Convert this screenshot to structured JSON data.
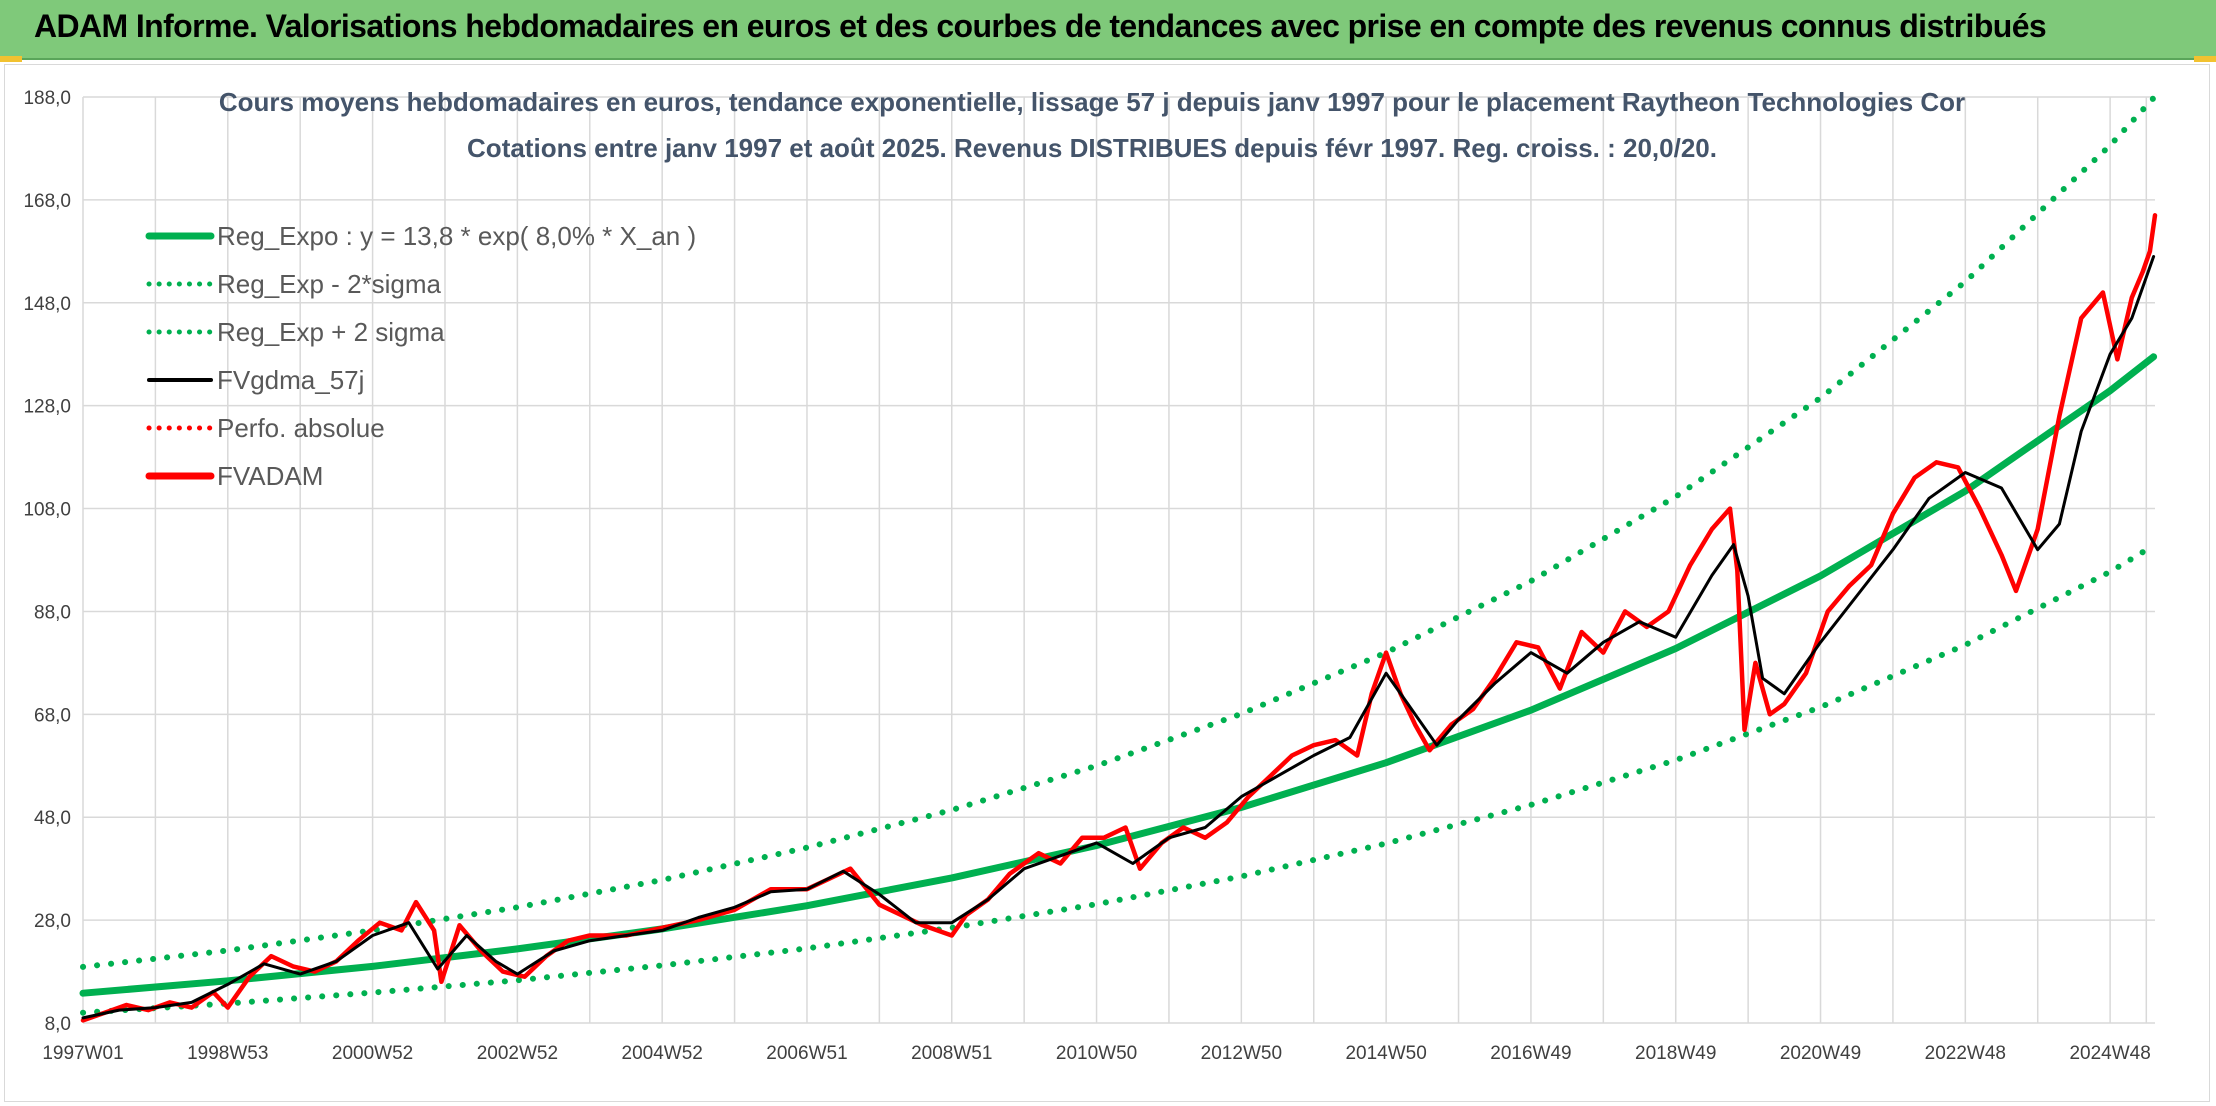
{
  "banner": {
    "title": "ADAM Informe. Valorisations hebdomadaires en euros et des courbes de tendances avec prise en compte des revenus connus distribués"
  },
  "colors": {
    "banner_bg": "#7fc97a",
    "trend_green": "#00b050",
    "price_red": "#ff0000",
    "smooth_black": "#000000",
    "grid": "#d9d9d9"
  },
  "chart_data": {
    "type": "line",
    "title": "Cours moyens hebdomadaires en euros, tendance exponentielle, lissage 57 j depuis janv 1997 pour le placement Raytheon Technologies Cor",
    "subtitle": "Cotations entre janv 1997 et août 2025. Revenus DISTRIBUES depuis févr 1997. Reg. croiss. : 20,0/20.",
    "xlabel": "",
    "ylabel": "",
    "ylim": [
      8,
      188
    ],
    "yticks": [
      "8,0",
      "28,0",
      "48,0",
      "68,0",
      "88,0",
      "108,0",
      "128,0",
      "148,0",
      "168,0",
      "188,0"
    ],
    "ytick_values": [
      8,
      28,
      48,
      68,
      88,
      108,
      128,
      148,
      168,
      188
    ],
    "xlim": [
      1997.0,
      2025.62
    ],
    "xticks": [
      "1997W01",
      "1998W53",
      "2000W52",
      "2002W52",
      "2004W52",
      "2006W51",
      "2008W51",
      "2010W50",
      "2012W50",
      "2014W50",
      "2016W49",
      "2018W49",
      "2020W49",
      "2022W48",
      "2024W48"
    ],
    "xtick_values": [
      1997.0,
      1999.0,
      2001.0,
      2003.0,
      2005.0,
      2007.0,
      2009.0,
      2011.0,
      2013.0,
      2015.0,
      2017.0,
      2019.0,
      2021.0,
      2023.0,
      2025.0
    ],
    "grid": true,
    "legend_position": "top-left",
    "legend": [
      {
        "label": "Reg_Expo : y = 13,8 * exp( 8,0% *  X_an )",
        "style": "solid-thick",
        "color": "#00b050"
      },
      {
        "label": "Reg_Exp - 2*sigma",
        "style": "dotted",
        "color": "#00b050"
      },
      {
        "label": "Reg_Exp + 2 sigma",
        "style": "dotted",
        "color": "#00b050"
      },
      {
        "label": "FVgdma_57j",
        "style": "solid",
        "color": "#000000"
      },
      {
        "label": "Perfo. absolue",
        "style": "dotted",
        "color": "#ff0000"
      },
      {
        "label": "FVADAM",
        "style": "solid-thick",
        "color": "#ff0000"
      }
    ],
    "series": [
      {
        "name": "Reg_Expo : y = 13,8 * exp( 8,0% *  X_an )",
        "style": "solid-thick",
        "color": "#00b050",
        "x": [
          1997.0,
          1999.0,
          2001.0,
          2003.0,
          2005.0,
          2007.0,
          2009.0,
          2011.0,
          2013.0,
          2015.0,
          2017.0,
          2019.0,
          2021.0,
          2023.0,
          2025.0,
          2025.6
        ],
        "y": [
          13.8,
          16.2,
          19.0,
          22.4,
          26.3,
          30.8,
          36.2,
          42.5,
          49.9,
          58.6,
          68.8,
          80.8,
          94.9,
          111.4,
          130.9,
          137.5
        ]
      },
      {
        "name": "Reg_Exp - 2*sigma",
        "style": "dotted",
        "color": "#00b050",
        "x": [
          1997.0,
          1999.0,
          2001.0,
          2003.0,
          2005.0,
          2007.0,
          2009.0,
          2011.0,
          2013.0,
          2015.0,
          2017.0,
          2019.0,
          2021.0,
          2023.0,
          2025.0,
          2025.6
        ],
        "y": [
          10.0,
          11.8,
          13.9,
          16.3,
          19.2,
          22.5,
          26.5,
          31.1,
          36.5,
          42.9,
          50.4,
          59.1,
          69.4,
          81.5,
          95.7,
          100.8
        ]
      },
      {
        "name": "Reg_Exp + 2 sigma",
        "style": "dotted",
        "color": "#00b050",
        "x": [
          1997.0,
          1999.0,
          2001.0,
          2003.0,
          2005.0,
          2007.0,
          2009.0,
          2011.0,
          2013.0,
          2015.0,
          2017.0,
          2019.0,
          2021.0,
          2023.0,
          2025.0,
          2025.6
        ],
        "y": [
          18.9,
          22.1,
          26.0,
          30.5,
          35.8,
          42.1,
          49.4,
          58.0,
          68.1,
          80.0,
          93.9,
          110.3,
          129.5,
          152.1,
          178.6,
          187.8
        ]
      },
      {
        "name": "FVgdma_57j",
        "style": "solid",
        "color": "#000000",
        "x": [
          1997.0,
          1997.5,
          1998.0,
          1998.5,
          1999.0,
          1999.5,
          2000.0,
          2000.5,
          2001.0,
          2001.5,
          2001.9,
          2002.3,
          2002.7,
          2003.0,
          2003.5,
          2004.0,
          2004.5,
          2005.0,
          2005.5,
          2006.0,
          2006.5,
          2007.0,
          2007.5,
          2008.0,
          2008.5,
          2009.0,
          2009.5,
          2010.0,
          2010.5,
          2011.0,
          2011.5,
          2012.0,
          2012.5,
          2013.0,
          2013.5,
          2014.0,
          2014.5,
          2015.0,
          2015.3,
          2015.7,
          2016.0,
          2016.5,
          2017.0,
          2017.5,
          2018.0,
          2018.5,
          2019.0,
          2019.5,
          2019.8,
          2020.0,
          2020.2,
          2020.5,
          2021.0,
          2021.5,
          2022.0,
          2022.5,
          2023.0,
          2023.5,
          2024.0,
          2024.3,
          2024.6,
          2025.0,
          2025.3,
          2025.6
        ],
        "y": [
          9.0,
          10.5,
          11.0,
          12.0,
          15.5,
          19.5,
          17.5,
          20.0,
          25.0,
          27.5,
          18.5,
          25.0,
          20.0,
          17.5,
          22.0,
          24.0,
          25.0,
          26.0,
          28.5,
          30.5,
          33.5,
          34.0,
          37.5,
          33.0,
          27.5,
          27.5,
          32.0,
          38.0,
          40.5,
          43.0,
          39.0,
          44.0,
          46.0,
          52.0,
          56.0,
          60.0,
          63.5,
          76.0,
          70.0,
          62.0,
          67.0,
          74.0,
          80.0,
          76.0,
          82.0,
          86.0,
          83.0,
          95.0,
          101.0,
          91.0,
          75.0,
          72.0,
          82.0,
          91.0,
          100.0,
          110.0,
          115.0,
          112.0,
          100.0,
          105.0,
          123.0,
          138.0,
          145.0,
          157.0
        ]
      },
      {
        "name": "FVADAM",
        "style": "solid-thick",
        "color": "#ff0000",
        "x": [
          1997.0,
          1997.3,
          1997.6,
          1997.9,
          1998.2,
          1998.5,
          1998.8,
          1999.0,
          1999.3,
          1999.6,
          1999.9,
          2000.2,
          2000.5,
          2000.8,
          2001.1,
          2001.4,
          2001.6,
          2001.85,
          2001.95,
          2002.2,
          2002.5,
          2002.8,
          2003.1,
          2003.4,
          2003.7,
          2004.0,
          2004.5,
          2005.0,
          2005.5,
          2006.0,
          2006.5,
          2007.0,
          2007.3,
          2007.6,
          2008.0,
          2008.3,
          2008.6,
          2009.0,
          2009.2,
          2009.5,
          2009.8,
          2010.2,
          2010.5,
          2010.8,
          2011.1,
          2011.4,
          2011.6,
          2011.9,
          2012.2,
          2012.5,
          2012.8,
          2013.1,
          2013.4,
          2013.7,
          2014.0,
          2014.3,
          2014.6,
          2014.8,
          2015.0,
          2015.2,
          2015.4,
          2015.6,
          2015.9,
          2016.2,
          2016.5,
          2016.8,
          2017.1,
          2017.4,
          2017.7,
          2018.0,
          2018.3,
          2018.6,
          2018.9,
          2019.2,
          2019.5,
          2019.75,
          2019.85,
          2019.95,
          2020.1,
          2020.3,
          2020.5,
          2020.8,
          2021.1,
          2021.4,
          2021.7,
          2022.0,
          2022.3,
          2022.6,
          2022.9,
          2023.2,
          2023.5,
          2023.7,
          2023.85,
          2024.0,
          2024.3,
          2024.6,
          2024.9,
          2025.1,
          2025.3,
          2025.45,
          2025.55,
          2025.62
        ],
        "y": [
          8.5,
          10.0,
          11.5,
          10.5,
          12.0,
          11.0,
          14.0,
          11.0,
          17.0,
          21.0,
          19.0,
          18.0,
          20.0,
          24.0,
          27.5,
          26.0,
          31.5,
          26.0,
          16.0,
          27.0,
          22.0,
          18.0,
          17.0,
          21.0,
          24.0,
          25.0,
          25.0,
          26.5,
          28.0,
          30.0,
          34.0,
          34.0,
          36.0,
          38.0,
          31.0,
          29.0,
          27.0,
          25.0,
          29.0,
          32.0,
          37.0,
          41.0,
          39.0,
          44.0,
          44.0,
          46.0,
          38.0,
          43.0,
          46.0,
          44.0,
          47.0,
          52.0,
          56.0,
          60.0,
          62.0,
          63.0,
          60.0,
          72.0,
          80.0,
          72.0,
          66.0,
          61.0,
          66.0,
          69.0,
          75.0,
          82.0,
          81.0,
          73.0,
          84.0,
          80.0,
          88.0,
          85.0,
          88.0,
          97.0,
          104.0,
          108.0,
          96.0,
          65.0,
          78.0,
          68.0,
          70.0,
          76.0,
          88.0,
          93.0,
          97.0,
          107.0,
          114.0,
          117.0,
          116.0,
          108.0,
          99.0,
          92.0,
          98.0,
          104.0,
          126.0,
          145.0,
          150.0,
          137.0,
          149.0,
          154.0,
          158.0,
          165.0
        ]
      }
    ]
  }
}
